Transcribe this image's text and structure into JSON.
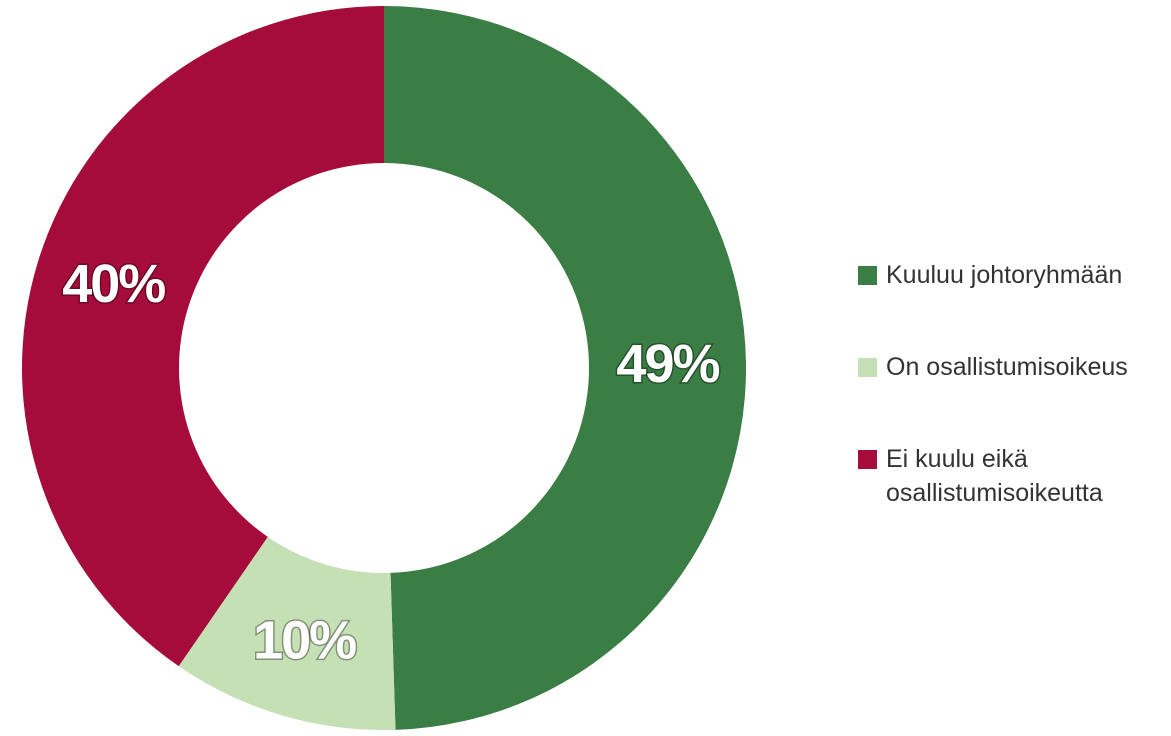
{
  "chart_data": {
    "type": "donut",
    "categories": [
      "Kuuluu johtoryhmään",
      "On osallistumisoikeus",
      "Ei kuulu eikä osallistumisoikeutta"
    ],
    "values": [
      49,
      10,
      40
    ],
    "value_labels": [
      "49%",
      "10%",
      "40%"
    ],
    "colors": [
      "#3a7d45",
      "#c6e0b5",
      "#a60c3b"
    ],
    "legend": "right"
  }
}
